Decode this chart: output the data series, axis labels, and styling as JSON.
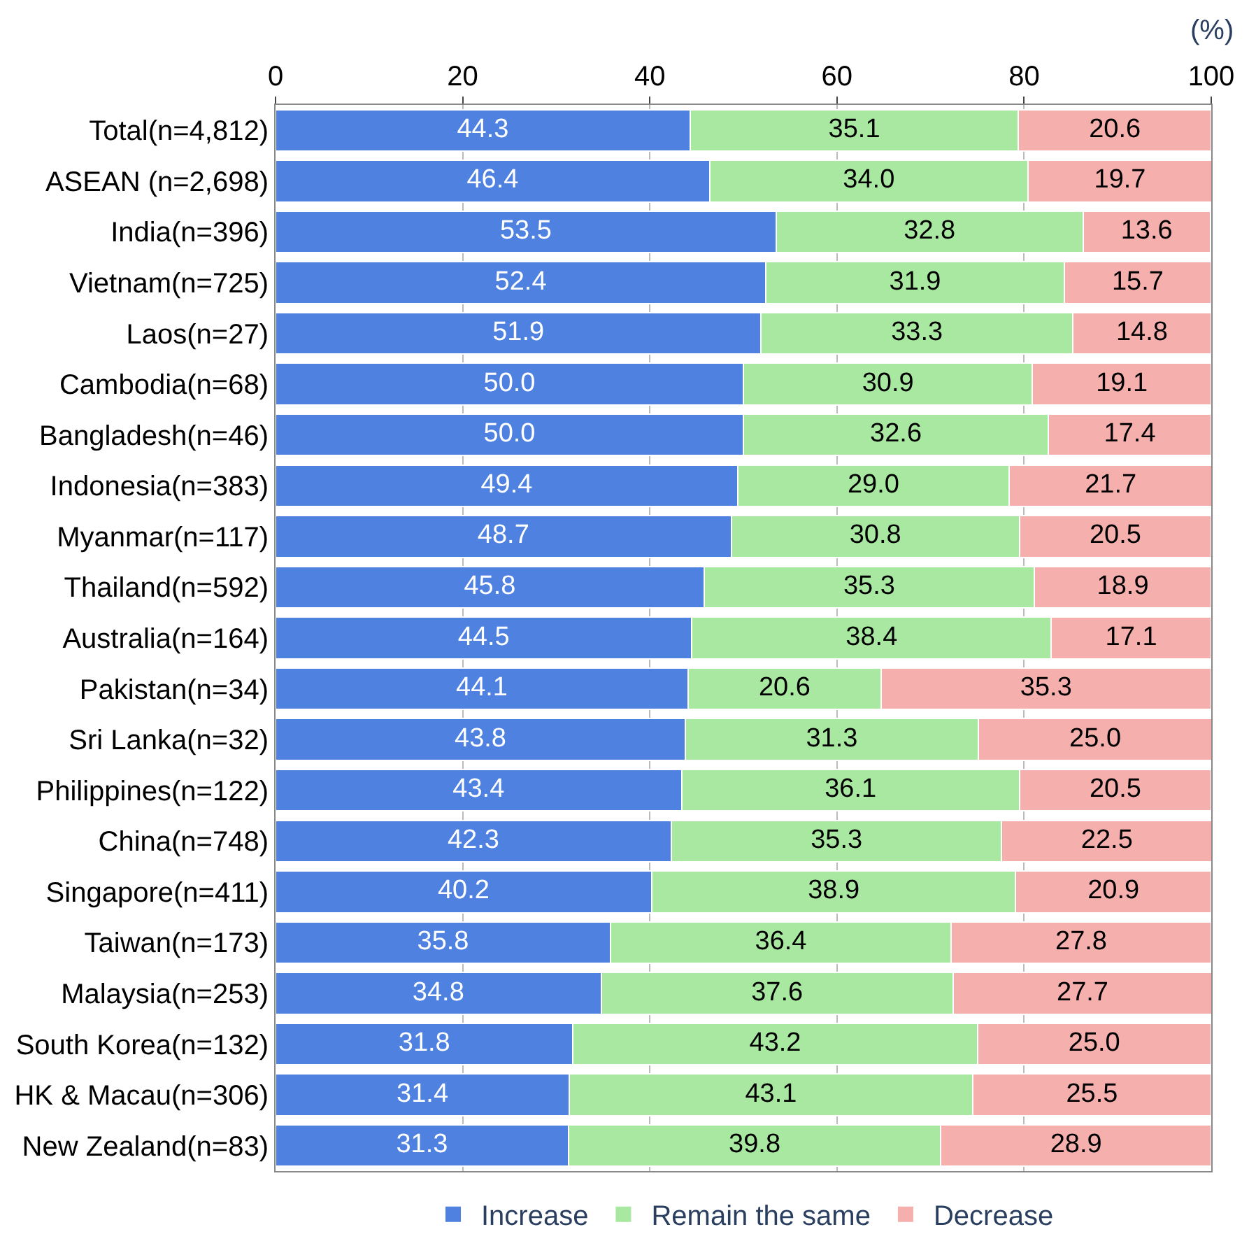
{
  "chart_data": {
    "type": "bar",
    "orientation": "horizontal",
    "stacked": true,
    "xlabel": "(%)",
    "categories": [
      "Total(n=4,812)",
      "ASEAN (n=2,698)",
      "India(n=396)",
      "Vietnam(n=725)",
      "Laos(n=27)",
      "Cambodia(n=68)",
      "Bangladesh(n=46)",
      "Indonesia(n=383)",
      "Myanmar(n=117)",
      "Thailand(n=592)",
      "Australia(n=164)",
      "Pakistan(n=34)",
      "Sri Lanka(n=32)",
      "Philippines(n=122)",
      "China(n=748)",
      "Singapore(n=411)",
      "Taiwan(n=173)",
      "Malaysia(n=253)",
      "South Korea(n=132)",
      "HK & Macau(n=306)",
      "New Zealand(n=83)"
    ],
    "series": [
      {
        "name": "Increase",
        "color": "#4f81e0",
        "values": [
          44.3,
          46.4,
          53.5,
          52.4,
          51.9,
          50.0,
          50.0,
          49.4,
          48.7,
          45.8,
          44.5,
          44.1,
          43.8,
          43.4,
          42.3,
          40.2,
          35.8,
          34.8,
          31.8,
          31.4,
          31.3
        ],
        "value_labels": [
          "44.3",
          "46.4",
          "53.5",
          "52.4",
          "51.9",
          "50.0",
          "50.0",
          "49.4",
          "48.7",
          "45.8",
          "44.5",
          "44.1",
          "43.8",
          "43.4",
          "42.3",
          "40.2",
          "35.8",
          "34.8",
          "31.8",
          "31.4",
          "31.3"
        ]
      },
      {
        "name": "Remain the same",
        "color": "#a8e8a0",
        "values": [
          35.1,
          34.0,
          32.8,
          31.9,
          33.3,
          30.9,
          32.6,
          29.0,
          30.8,
          35.3,
          38.4,
          20.6,
          31.3,
          36.1,
          35.3,
          38.9,
          36.4,
          37.6,
          43.2,
          43.1,
          39.8
        ],
        "value_labels": [
          "35.1",
          "34.0",
          "32.8",
          "31.9",
          "33.3",
          "30.9",
          "32.6",
          "29.0",
          "30.8",
          "35.3",
          "38.4",
          "20.6",
          "31.3",
          "36.1",
          "35.3",
          "38.9",
          "36.4",
          "37.6",
          "43.2",
          "43.1",
          "39.8"
        ]
      },
      {
        "name": "Decrease",
        "color": "#f5b0ae",
        "values": [
          20.6,
          19.7,
          13.6,
          15.7,
          14.8,
          19.1,
          17.4,
          21.7,
          20.5,
          18.9,
          17.1,
          35.3,
          25.0,
          20.5,
          22.5,
          20.9,
          27.8,
          27.7,
          25.0,
          25.5,
          28.9
        ],
        "value_labels": [
          "20.6",
          "19.7",
          "13.6",
          "15.7",
          "14.8",
          "19.1",
          "17.4",
          "21.7",
          "20.5",
          "18.9",
          "17.1",
          "35.3",
          "25.0",
          "20.5",
          "22.5",
          "20.9",
          "27.8",
          "27.7",
          "25.0",
          "25.5",
          "28.9"
        ]
      }
    ],
    "xlim": [
      0,
      100
    ],
    "xticks": [
      0,
      20,
      40,
      60,
      80,
      100
    ],
    "grid": "x",
    "legend": "bottom"
  }
}
